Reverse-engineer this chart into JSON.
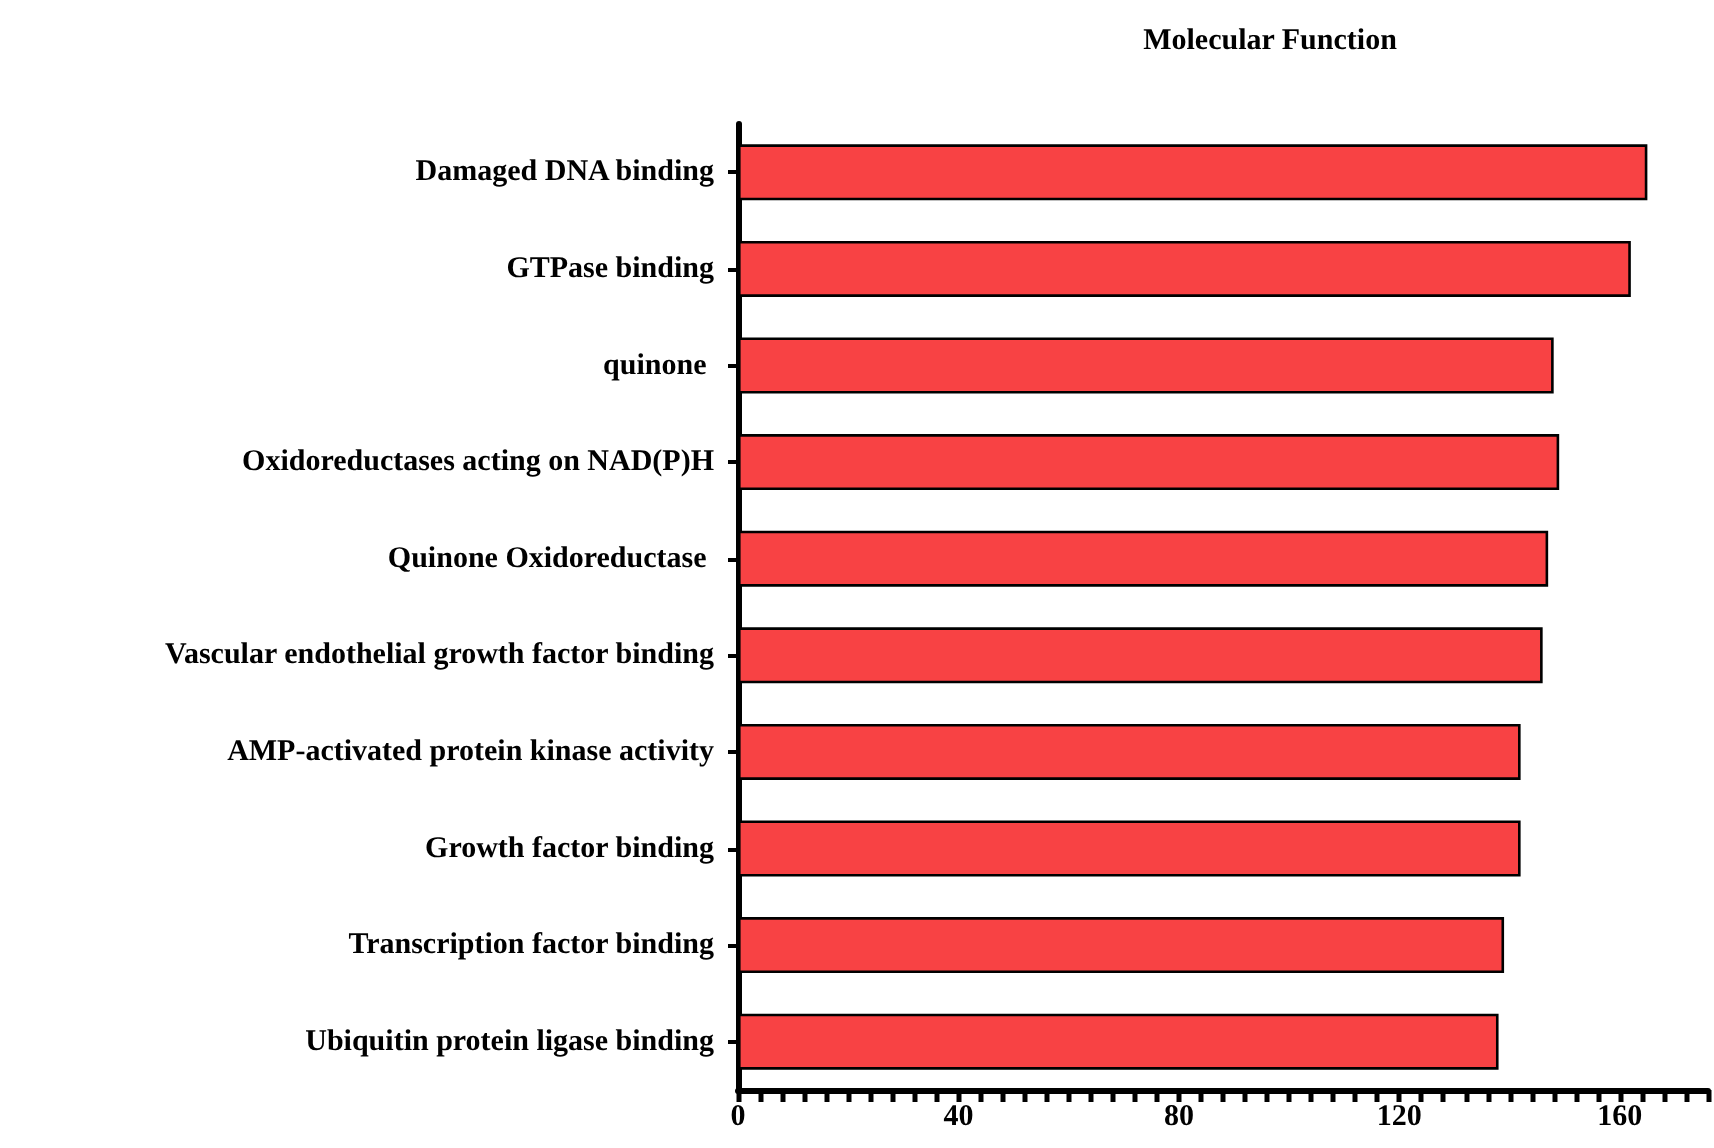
{
  "chart_data": {
    "type": "bar",
    "orientation": "horizontal",
    "title": "Molecular Function",
    "categories": [
      "Damaged DNA binding",
      "GTPase binding",
      "quinone ",
      "Oxidoreductases acting on NAD(P)H",
      "Quinone Oxidoreductase ",
      "Vascular endothelial growth factor binding",
      "AMP-activated protein kinase activity",
      "Growth factor binding",
      "Transcription factor binding",
      "Ubiquitin protein ligase binding"
    ],
    "values": [
      165,
      162,
      148,
      149,
      147,
      146,
      142,
      142,
      139,
      138
    ],
    "color": "#f84244",
    "xlim": [
      0,
      176
    ],
    "xticks": [
      0,
      {
        "value": 4,
        "label": null
      },
      {
        "value": 8,
        "label": null
      },
      {
        "value": 12,
        "label": null
      },
      {
        "value": 16,
        "label": null
      },
      {
        "value": 20,
        "label": null
      },
      {
        "value": 24,
        "label": null
      },
      {
        "value": 28,
        "label": null
      },
      {
        "value": 32,
        "label": null
      },
      {
        "value": 36,
        "label": null
      },
      40,
      {
        "value": 44,
        "label": null
      },
      {
        "value": 48,
        "label": null
      },
      {
        "value": 52,
        "label": null
      },
      {
        "value": 56,
        "label": null
      },
      {
        "value": 60,
        "label": null
      },
      {
        "value": 64,
        "label": null
      },
      {
        "value": 68,
        "label": null
      },
      {
        "value": 72,
        "label": null
      },
      {
        "value": 76,
        "label": null
      },
      80,
      {
        "value": 84,
        "label": null
      },
      {
        "value": 88,
        "label": null
      },
      {
        "value": 92,
        "label": null
      },
      {
        "value": 96,
        "label": null
      },
      {
        "value": 100,
        "label": null
      },
      {
        "value": 104,
        "label": null
      },
      {
        "value": 108,
        "label": null
      },
      {
        "value": 112,
        "label": null
      },
      {
        "value": 116,
        "label": null
      },
      120,
      {
        "value": 124,
        "label": null
      },
      {
        "value": 128,
        "label": null
      },
      {
        "value": 132,
        "label": null
      },
      {
        "value": 136,
        "label": null
      },
      {
        "value": 140,
        "label": null
      },
      {
        "value": 144,
        "label": null
      },
      {
        "value": 148,
        "label": null
      },
      {
        "value": 152,
        "label": null
      },
      {
        "value": 156,
        "label": null
      },
      160,
      {
        "value": 164,
        "label": null
      },
      {
        "value": 168,
        "label": null
      },
      {
        "value": 172,
        "label": null
      },
      {
        "value": 176,
        "label": null
      }
    ],
    "grid": false
  }
}
